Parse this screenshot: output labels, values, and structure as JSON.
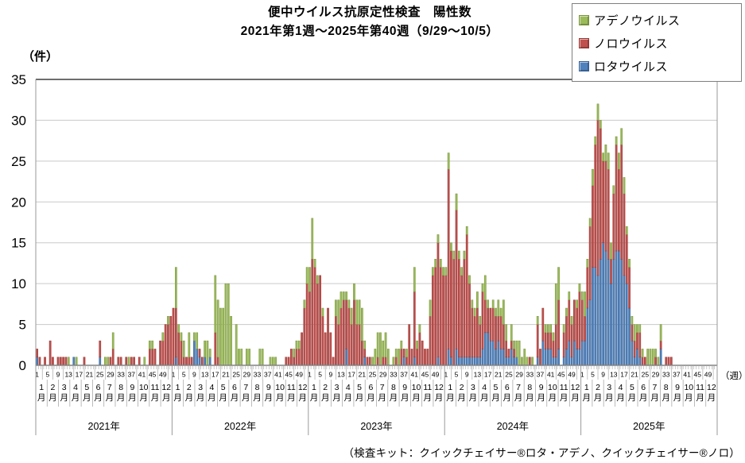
{
  "title": {
    "line1": "便中ウイルス抗原定性検査　陽性数",
    "line2": "2021年第1週～2025年第40週（9/29～10/5）"
  },
  "legend": {
    "position": "top-right",
    "items": [
      {
        "label": "アデノウイルス",
        "color": "#9BBB59",
        "edge": "#77933C"
      },
      {
        "label": "ノロウイルス",
        "color": "#C0504D",
        "edge": "#943634"
      },
      {
        "label": "ロタウイルス",
        "color": "#4F81BD",
        "edge": "#376091"
      }
    ]
  },
  "axes": {
    "y_unit": "（件）",
    "x_unit": "（週）",
    "y_ticks": [
      0,
      5,
      10,
      15,
      20,
      25,
      30,
      35
    ],
    "week_ticks": [
      1,
      5,
      9,
      13,
      17,
      21,
      25,
      29,
      33,
      37,
      41,
      45,
      49
    ],
    "months": [
      "1",
      "2",
      "3",
      "4",
      "5",
      "6",
      "7",
      "8",
      "9",
      "10",
      "11",
      "12"
    ],
    "month_suffix": "月"
  },
  "caption": "（検査キット：クイックチェイサー®ロタ・アデノ、クイックチェイサー®ノロ）",
  "chart_data": {
    "type": "bar",
    "stacked": true,
    "grid": true,
    "ylim": [
      0,
      35
    ],
    "ylabel": "（件）",
    "xlabel": "（週）",
    "title": "便中ウイルス抗原定性検査　陽性数",
    "subtitle": "2021年第1週～2025年第40週（9/29～10/5）",
    "series_names": [
      "アデノウイルス",
      "ノロウイルス",
      "ロタウイルス"
    ],
    "week_value_order": [
      "adeno",
      "noro",
      "rota"
    ],
    "stack_order_bottom_to_top": [
      "rota",
      "noro",
      "adeno"
    ],
    "years": [
      {
        "year": 2021,
        "label": "2021年",
        "weeks": [
          [
            0,
            1,
            1
          ],
          [
            0,
            1,
            0
          ],
          [
            0,
            0,
            0
          ],
          [
            0,
            1,
            0
          ],
          [
            0,
            0,
            0
          ],
          [
            0,
            3,
            0
          ],
          [
            0,
            1,
            0
          ],
          [
            0,
            0,
            0
          ],
          [
            0,
            1,
            0
          ],
          [
            0,
            1,
            0
          ],
          [
            0,
            1,
            0
          ],
          [
            0,
            1,
            0
          ],
          [
            1,
            0,
            0
          ],
          [
            0,
            0,
            0
          ],
          [
            0,
            0,
            1
          ],
          [
            1,
            0,
            0
          ],
          [
            0,
            0,
            0
          ],
          [
            0,
            0,
            0
          ],
          [
            0,
            1,
            0
          ],
          [
            0,
            0,
            0
          ],
          [
            0,
            0,
            0
          ],
          [
            0,
            0,
            0
          ],
          [
            0,
            0,
            0
          ],
          [
            0,
            0,
            0
          ],
          [
            0,
            2,
            1
          ],
          [
            0,
            0,
            0
          ],
          [
            1,
            0,
            0
          ],
          [
            1,
            0,
            0
          ],
          [
            0,
            1,
            0
          ],
          [
            2,
            2,
            0
          ],
          [
            0,
            0,
            0
          ],
          [
            0,
            1,
            0
          ],
          [
            0,
            1,
            0
          ],
          [
            0,
            0,
            0
          ],
          [
            0,
            1,
            0
          ],
          [
            1,
            0,
            0
          ],
          [
            0,
            1,
            0
          ],
          [
            0,
            1,
            0
          ],
          [
            0,
            0,
            0
          ],
          [
            0,
            1,
            0
          ],
          [
            0,
            0,
            0
          ],
          [
            1,
            0,
            0
          ],
          [
            0,
            0,
            0
          ],
          [
            1,
            2,
            0
          ],
          [
            1,
            2,
            0
          ],
          [
            0,
            2,
            0
          ],
          [
            0,
            0,
            0
          ],
          [
            0,
            3,
            0
          ],
          [
            1,
            3,
            0
          ],
          [
            0,
            5,
            0
          ],
          [
            1,
            5,
            0
          ],
          [
            0,
            6,
            0
          ]
        ]
      },
      {
        "year": 2022,
        "label": "2022年",
        "weeks": [
          [
            0,
            7,
            0
          ],
          [
            5,
            6,
            1
          ],
          [
            1,
            4,
            0
          ],
          [
            1,
            3,
            0
          ],
          [
            2,
            1,
            0
          ],
          [
            0,
            1,
            0
          ],
          [
            3,
            1,
            0
          ],
          [
            0,
            1,
            0
          ],
          [
            1,
            0,
            3
          ],
          [
            2,
            0,
            2
          ],
          [
            0,
            1,
            1
          ],
          [
            0,
            1,
            0
          ],
          [
            2,
            0,
            1
          ],
          [
            3,
            0,
            0
          ],
          [
            1,
            0,
            1
          ],
          [
            0,
            0,
            0
          ],
          [
            7,
            4,
            0
          ],
          [
            7,
            1,
            0
          ],
          [
            7,
            0,
            0
          ],
          [
            7,
            0,
            0
          ],
          [
            10,
            0,
            0
          ],
          [
            10,
            0,
            0
          ],
          [
            6,
            0,
            0
          ],
          [
            0,
            0,
            0
          ],
          [
            5,
            0,
            0
          ],
          [
            2,
            0,
            0
          ],
          [
            2,
            0,
            0
          ],
          [
            0,
            0,
            0
          ],
          [
            2,
            0,
            0
          ],
          [
            2,
            0,
            0
          ],
          [
            0,
            0,
            0
          ],
          [
            0,
            0,
            0
          ],
          [
            0,
            0,
            0
          ],
          [
            2,
            0,
            0
          ],
          [
            2,
            0,
            0
          ],
          [
            0,
            0,
            0
          ],
          [
            0,
            0,
            0
          ],
          [
            1,
            0,
            0
          ],
          [
            1,
            0,
            0
          ],
          [
            1,
            0,
            0
          ],
          [
            0,
            0,
            0
          ],
          [
            0,
            0,
            0
          ],
          [
            0,
            0,
            0
          ],
          [
            0,
            1,
            0
          ],
          [
            0,
            1,
            0
          ],
          [
            0,
            2,
            0
          ],
          [
            1,
            1,
            0
          ],
          [
            1,
            2,
            0
          ],
          [
            1,
            2,
            0
          ],
          [
            0,
            4,
            0
          ],
          [
            1,
            7,
            0
          ],
          [
            2,
            10,
            0
          ]
        ]
      },
      {
        "year": 2023,
        "label": "2023年",
        "weeks": [
          [
            3,
            9,
            0
          ],
          [
            5,
            13,
            0
          ],
          [
            1,
            12,
            0
          ],
          [
            1,
            10,
            0
          ],
          [
            0,
            11,
            0
          ],
          [
            1,
            6,
            0
          ],
          [
            0,
            4,
            0
          ],
          [
            0,
            7,
            0
          ],
          [
            0,
            4,
            0
          ],
          [
            0,
            1,
            0
          ],
          [
            2,
            6,
            0
          ],
          [
            3,
            5,
            0
          ],
          [
            2,
            7,
            0
          ],
          [
            1,
            8,
            0
          ],
          [
            1,
            6,
            2
          ],
          [
            1,
            7,
            0
          ],
          [
            2,
            5,
            0
          ],
          [
            2,
            8,
            0
          ],
          [
            3,
            5,
            0
          ],
          [
            3,
            5,
            0
          ],
          [
            4,
            3,
            0
          ],
          [
            1,
            1,
            1
          ],
          [
            0,
            1,
            0
          ],
          [
            0,
            1,
            0
          ],
          [
            1,
            0,
            0
          ],
          [
            2,
            0,
            0
          ],
          [
            3,
            1,
            0
          ],
          [
            4,
            0,
            0
          ],
          [
            2,
            1,
            0
          ],
          [
            3,
            1,
            0
          ],
          [
            2,
            0,
            0
          ],
          [
            0,
            0,
            0
          ],
          [
            1,
            0,
            0
          ],
          [
            1,
            1,
            0
          ],
          [
            2,
            0,
            0
          ],
          [
            1,
            2,
            0
          ],
          [
            0,
            1,
            1
          ],
          [
            1,
            1,
            0
          ],
          [
            0,
            5,
            0
          ],
          [
            0,
            2,
            0
          ],
          [
            3,
            8,
            1
          ],
          [
            1,
            2,
            0
          ],
          [
            1,
            4,
            0
          ],
          [
            0,
            3,
            0
          ],
          [
            0,
            2,
            0
          ],
          [
            0,
            2,
            0
          ],
          [
            2,
            6,
            0
          ],
          [
            1,
            11,
            0
          ],
          [
            1,
            12,
            0
          ],
          [
            1,
            14,
            1
          ],
          [
            1,
            12,
            0
          ],
          [
            1,
            11,
            0
          ]
        ]
      },
      {
        "year": 2024,
        "label": "2024年",
        "weeks": [
          [
            1,
            11,
            0
          ],
          [
            2,
            22,
            2
          ],
          [
            1,
            13,
            1
          ],
          [
            1,
            13,
            0
          ],
          [
            2,
            17,
            2
          ],
          [
            1,
            12,
            1
          ],
          [
            1,
            10,
            1
          ],
          [
            1,
            12,
            1
          ],
          [
            1,
            15,
            1
          ],
          [
            1,
            9,
            1
          ],
          [
            1,
            6,
            1
          ],
          [
            1,
            5,
            1
          ],
          [
            2,
            6,
            1
          ],
          [
            1,
            4,
            1
          ],
          [
            1,
            7,
            2
          ],
          [
            3,
            4,
            4
          ],
          [
            1,
            3,
            4
          ],
          [
            0,
            4,
            3
          ],
          [
            1,
            4,
            3
          ],
          [
            1,
            4,
            2
          ],
          [
            2,
            3,
            3
          ],
          [
            1,
            4,
            2
          ],
          [
            3,
            3,
            2
          ],
          [
            2,
            2,
            1
          ],
          [
            0,
            1,
            1
          ],
          [
            2,
            1,
            2
          ],
          [
            1,
            1,
            1
          ],
          [
            2,
            0,
            1
          ],
          [
            3,
            0,
            0
          ],
          [
            1,
            0,
            0
          ],
          [
            2,
            0,
            0
          ],
          [
            1,
            0,
            0
          ],
          [
            0,
            1,
            0
          ],
          [
            1,
            0,
            0
          ],
          [
            0,
            0,
            0
          ],
          [
            1,
            4,
            1
          ],
          [
            0,
            2,
            0
          ],
          [
            0,
            4,
            3
          ],
          [
            1,
            2,
            2
          ],
          [
            1,
            2,
            2
          ],
          [
            1,
            2,
            2
          ],
          [
            1,
            2,
            1
          ],
          [
            5,
            4,
            1
          ],
          [
            4,
            6,
            2
          ],
          [
            0,
            0,
            0
          ],
          [
            1,
            3,
            1
          ],
          [
            1,
            4,
            2
          ],
          [
            1,
            5,
            3
          ],
          [
            1,
            4,
            1
          ],
          [
            0,
            5,
            3
          ],
          [
            1,
            5,
            2
          ],
          [
            1,
            7,
            2
          ]
        ]
      },
      {
        "year": 2025,
        "label": "2025年",
        "weeks": [
          [
            1,
            5,
            3
          ],
          [
            3,
            3,
            3
          ],
          [
            1,
            5,
            7
          ],
          [
            1,
            9,
            8
          ],
          [
            2,
            10,
            12
          ],
          [
            1,
            15,
            12
          ],
          [
            2,
            19,
            11
          ],
          [
            1,
            16,
            13
          ],
          [
            1,
            10,
            15
          ],
          [
            2,
            11,
            14
          ],
          [
            2,
            11,
            13
          ],
          [
            2,
            3,
            10
          ],
          [
            1,
            8,
            13
          ],
          [
            1,
            13,
            14
          ],
          [
            2,
            10,
            14
          ],
          [
            2,
            14,
            13
          ],
          [
            2,
            10,
            11
          ],
          [
            1,
            6,
            10
          ],
          [
            1,
            5,
            7
          ],
          [
            1,
            2,
            3
          ],
          [
            2,
            2,
            1
          ],
          [
            1,
            2,
            2
          ],
          [
            1,
            3,
            1
          ],
          [
            1,
            1,
            0
          ],
          [
            0,
            1,
            0
          ],
          [
            2,
            0,
            0
          ],
          [
            2,
            0,
            0
          ],
          [
            2,
            0,
            0
          ],
          [
            1,
            1,
            0
          ],
          [
            1,
            0,
            0
          ],
          [
            2,
            1,
            2
          ],
          [
            0,
            0,
            0
          ],
          [
            0,
            1,
            0
          ],
          [
            0,
            1,
            0
          ],
          [
            0,
            1,
            0
          ],
          [
            0,
            0,
            0
          ],
          [
            0,
            0,
            0
          ],
          [
            0,
            0,
            0
          ],
          [
            0,
            0,
            0
          ],
          [
            0,
            0,
            0
          ]
        ]
      }
    ]
  }
}
